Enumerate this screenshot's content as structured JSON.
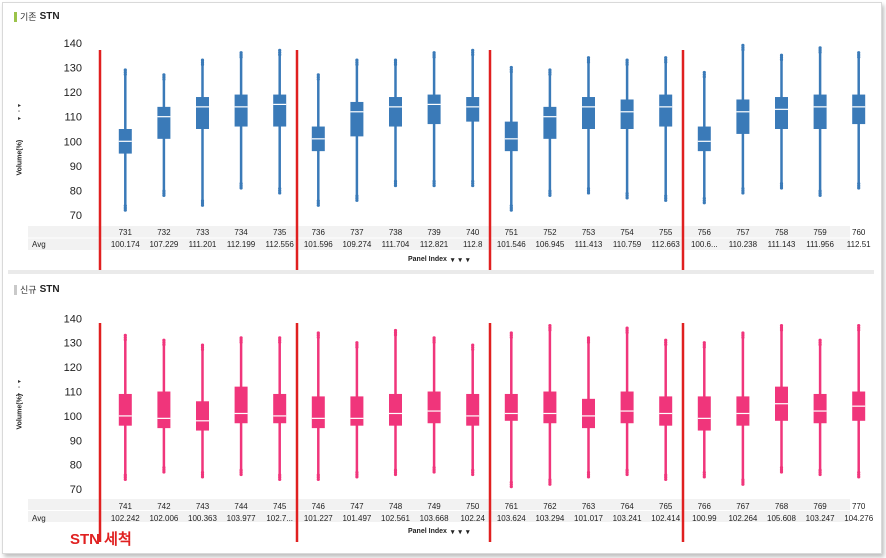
{
  "panels": [
    {
      "title_ko": "기존",
      "title_en": "STN",
      "ylabel": "Volume(%)",
      "footer_label": "Avg",
      "panel_index_label": "Panel Index",
      "color": "#3a7ab8",
      "chart_data": {
        "type": "box",
        "ylim": [
          68,
          142
        ],
        "yticks": [
          70,
          80,
          90,
          100,
          110,
          120,
          130,
          140
        ],
        "categories": [
          "731",
          "732",
          "733",
          "734",
          "735",
          "736",
          "737",
          "738",
          "739",
          "740",
          "751",
          "752",
          "753",
          "754",
          "755",
          "756",
          "757",
          "758",
          "759",
          "760"
        ],
        "avg": [
          "100.174",
          "107.229",
          "111.201",
          "112.199",
          "112.556",
          "101.596",
          "109.274",
          "111.704",
          "112.821",
          "112.8",
          "101.546",
          "106.945",
          "111.413",
          "110.759",
          "112.663",
          "100.6...",
          "110.238",
          "111.143",
          "111.956",
          "112.51"
        ],
        "boxes": [
          {
            "q1": 95,
            "median": 100,
            "q3": 105,
            "lo": 72,
            "hi": 129
          },
          {
            "q1": 101,
            "median": 110,
            "q3": 114,
            "lo": 78,
            "hi": 127
          },
          {
            "q1": 105,
            "median": 114,
            "q3": 118,
            "lo": 74,
            "hi": 133
          },
          {
            "q1": 106,
            "median": 114,
            "q3": 119,
            "lo": 81,
            "hi": 136
          },
          {
            "q1": 106,
            "median": 115,
            "q3": 119,
            "lo": 79,
            "hi": 137
          },
          {
            "q1": 96,
            "median": 101,
            "q3": 106,
            "lo": 74,
            "hi": 127
          },
          {
            "q1": 102,
            "median": 112,
            "q3": 116,
            "lo": 76,
            "hi": 133
          },
          {
            "q1": 106,
            "median": 114,
            "q3": 118,
            "lo": 82,
            "hi": 133
          },
          {
            "q1": 107,
            "median": 115,
            "q3": 119,
            "lo": 82,
            "hi": 136
          },
          {
            "q1": 108,
            "median": 114,
            "q3": 118,
            "lo": 82,
            "hi": 137
          },
          {
            "q1": 96,
            "median": 101,
            "q3": 108,
            "lo": 72,
            "hi": 130
          },
          {
            "q1": 101,
            "median": 110,
            "q3": 114,
            "lo": 78,
            "hi": 129
          },
          {
            "q1": 105,
            "median": 114,
            "q3": 118,
            "lo": 79,
            "hi": 134
          },
          {
            "q1": 105,
            "median": 112,
            "q3": 117,
            "lo": 77,
            "hi": 133
          },
          {
            "q1": 106,
            "median": 114,
            "q3": 119,
            "lo": 76,
            "hi": 134
          },
          {
            "q1": 96,
            "median": 100,
            "q3": 106,
            "lo": 75,
            "hi": 128
          },
          {
            "q1": 103,
            "median": 112,
            "q3": 117,
            "lo": 79,
            "hi": 139
          },
          {
            "q1": 105,
            "median": 113,
            "q3": 118,
            "lo": 81,
            "hi": 135
          },
          {
            "q1": 105,
            "median": 114,
            "q3": 119,
            "lo": 78,
            "hi": 138
          },
          {
            "q1": 107,
            "median": 114,
            "q3": 119,
            "lo": 81,
            "hi": 136
          }
        ]
      }
    },
    {
      "title_ko": "신규",
      "title_en": "STN",
      "ylabel": "Volume(%)",
      "footer_label": "Avg",
      "panel_index_label": "Panel Index",
      "color": "#f0357b",
      "chart_data": {
        "type": "box",
        "ylim": [
          68,
          143
        ],
        "yticks": [
          70,
          80,
          90,
          100,
          110,
          120,
          130,
          140
        ],
        "categories": [
          "741",
          "742",
          "743",
          "744",
          "745",
          "746",
          "747",
          "748",
          "749",
          "750",
          "761",
          "762",
          "763",
          "764",
          "765",
          "766",
          "767",
          "768",
          "769",
          "770"
        ],
        "avg": [
          "102.242",
          "102.006",
          "100.363",
          "103.977",
          "102.7...",
          "101.227",
          "101.497",
          "102.561",
          "103.668",
          "102.24",
          "103.624",
          "103.294",
          "101.017",
          "103.241",
          "102.414",
          "100.99",
          "102.264",
          "105.608",
          "103.247",
          "104.276"
        ],
        "boxes": [
          {
            "q1": 96,
            "median": 100,
            "q3": 109,
            "lo": 74,
            "hi": 133
          },
          {
            "q1": 95,
            "median": 99,
            "q3": 110,
            "lo": 77,
            "hi": 131
          },
          {
            "q1": 94,
            "median": 98,
            "q3": 106,
            "lo": 75,
            "hi": 129
          },
          {
            "q1": 97,
            "median": 101,
            "q3": 112,
            "lo": 76,
            "hi": 132
          },
          {
            "q1": 97,
            "median": 100,
            "q3": 109,
            "lo": 74,
            "hi": 132
          },
          {
            "q1": 95,
            "median": 99,
            "q3": 108,
            "lo": 74,
            "hi": 134
          },
          {
            "q1": 96,
            "median": 99,
            "q3": 108,
            "lo": 75,
            "hi": 130
          },
          {
            "q1": 96,
            "median": 101,
            "q3": 109,
            "lo": 76,
            "hi": 135
          },
          {
            "q1": 97,
            "median": 102,
            "q3": 110,
            "lo": 77,
            "hi": 132
          },
          {
            "q1": 96,
            "median": 100,
            "q3": 109,
            "lo": 76,
            "hi": 129
          },
          {
            "q1": 98,
            "median": 101,
            "q3": 109,
            "lo": 71,
            "hi": 134
          },
          {
            "q1": 97,
            "median": 101,
            "q3": 110,
            "lo": 72,
            "hi": 137
          },
          {
            "q1": 95,
            "median": 100,
            "q3": 107,
            "lo": 75,
            "hi": 132
          },
          {
            "q1": 97,
            "median": 102,
            "q3": 110,
            "lo": 76,
            "hi": 136
          },
          {
            "q1": 96,
            "median": 101,
            "q3": 108,
            "lo": 74,
            "hi": 131
          },
          {
            "q1": 94,
            "median": 99,
            "q3": 108,
            "lo": 75,
            "hi": 130
          },
          {
            "q1": 96,
            "median": 101,
            "q3": 108,
            "lo": 72,
            "hi": 134
          },
          {
            "q1": 98,
            "median": 105,
            "q3": 112,
            "lo": 77,
            "hi": 137
          },
          {
            "q1": 97,
            "median": 102,
            "q3": 109,
            "lo": 76,
            "hi": 131
          },
          {
            "q1": 98,
            "median": 104,
            "q3": 110,
            "lo": 75,
            "hi": 137
          }
        ]
      }
    }
  ],
  "separator_color": "#e02020",
  "separator_after_index": [
    4,
    9,
    14
  ],
  "annotation": "STN 세척"
}
